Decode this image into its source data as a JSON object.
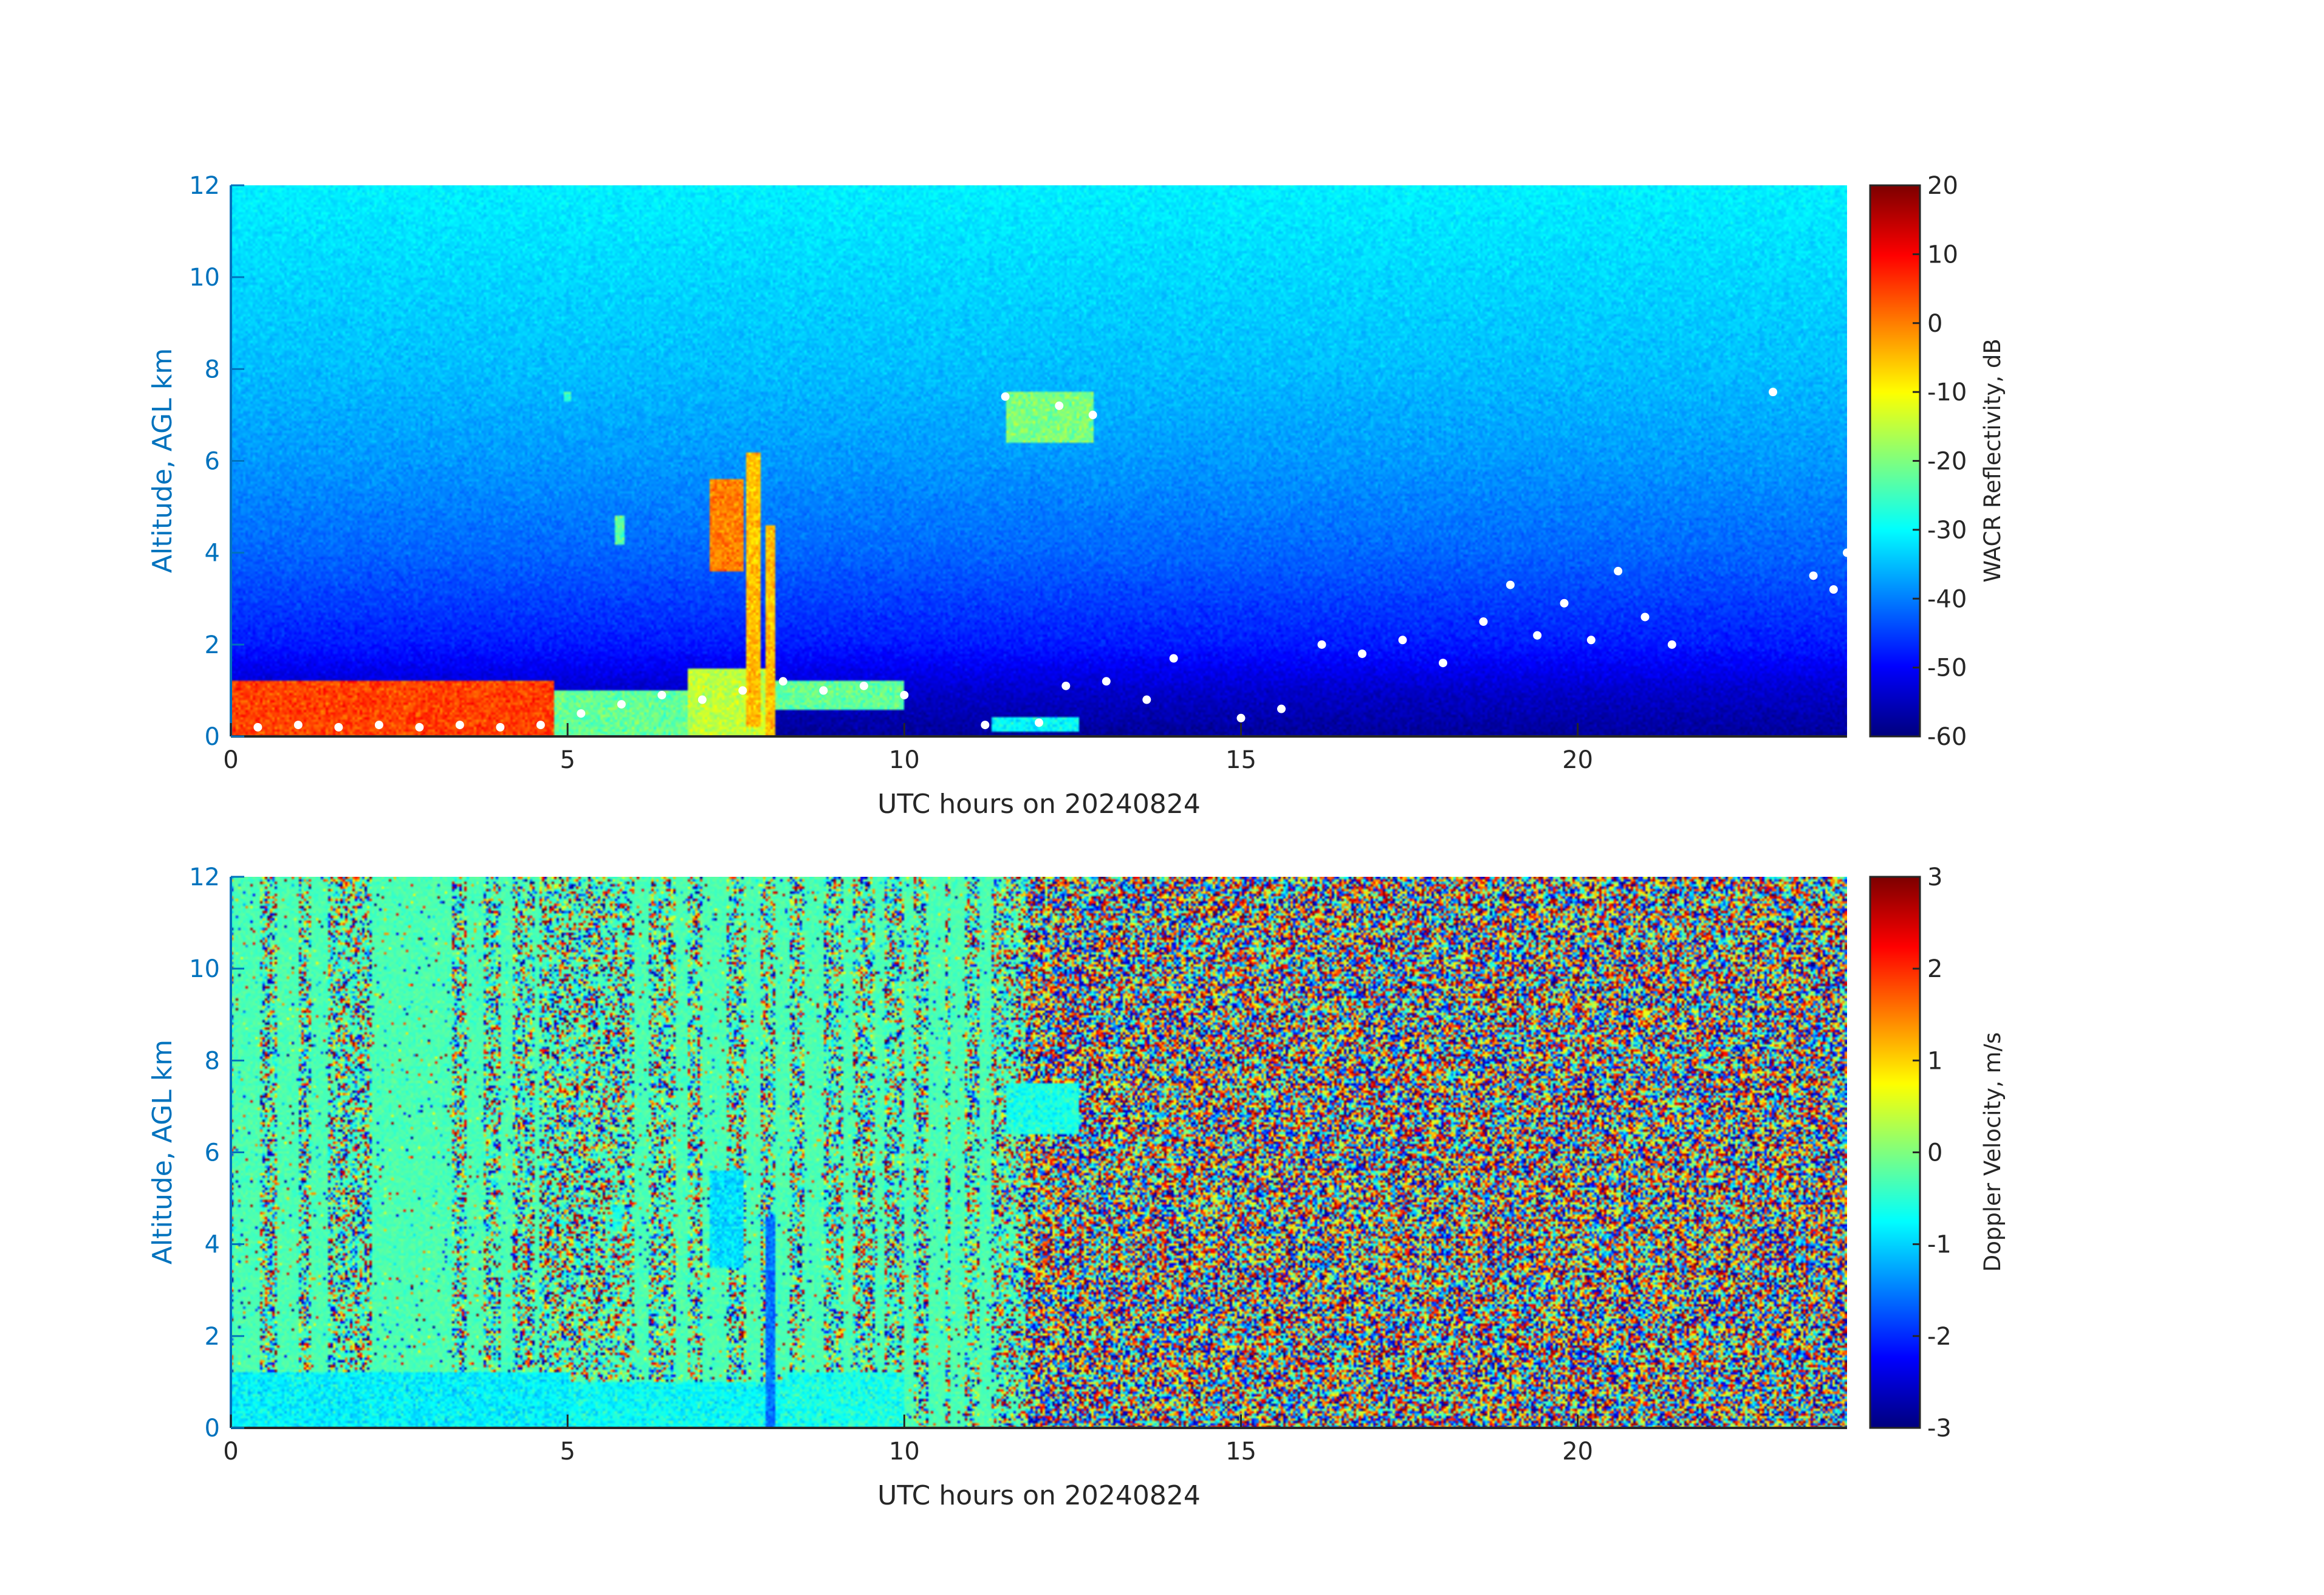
{
  "colors": {
    "axis_text_left": "#0072BD",
    "axis_text": "#262626",
    "axis_line": "#262626",
    "background": "#ffffff",
    "overlay_points": "#ffffff",
    "colormap": "jet"
  },
  "chart_data": [
    {
      "type": "heatmap",
      "name": "reflectivity",
      "title": "",
      "xlabel": "UTC hours on 20240824",
      "ylabel": "Altitude, AGL km",
      "xlim": [
        0,
        24
      ],
      "ylim": [
        0,
        12
      ],
      "xticks": [
        0,
        5,
        10,
        15,
        20
      ],
      "yticks": [
        0,
        2,
        4,
        6,
        8,
        10,
        12
      ],
      "grid": false,
      "colorbar": {
        "label": "WACR Reflectivity, dB",
        "clim": [
          -60,
          20
        ],
        "ticks": [
          20,
          10,
          0,
          -10,
          -20,
          -30,
          -40,
          -50,
          -60
        ]
      },
      "background_profile": [
        {
          "alt_km": 0.0,
          "value": -58
        },
        {
          "alt_km": 1.0,
          "value": -54
        },
        {
          "alt_km": 2.0,
          "value": -48
        },
        {
          "alt_km": 4.0,
          "value": -42
        },
        {
          "alt_km": 6.0,
          "value": -38
        },
        {
          "alt_km": 8.0,
          "value": -35
        },
        {
          "alt_km": 10.0,
          "value": -33
        },
        {
          "alt_km": 12.0,
          "value": -31
        }
      ],
      "features": [
        {
          "t0": 0.0,
          "t1": 4.8,
          "z0": 0.0,
          "z1": 1.2,
          "value": 5
        },
        {
          "t0": 4.8,
          "t1": 6.8,
          "z0": 0.0,
          "z1": 1.0,
          "value": -22
        },
        {
          "t0": 6.8,
          "t1": 8.1,
          "z0": 0.0,
          "z1": 1.5,
          "value": -15
        },
        {
          "t0": 7.1,
          "t1": 7.6,
          "z0": 3.6,
          "z1": 5.6,
          "value": 0
        },
        {
          "t0": 7.65,
          "t1": 7.85,
          "z0": 0.2,
          "z1": 6.2,
          "value": -5
        },
        {
          "t0": 7.95,
          "t1": 8.1,
          "z0": 0.0,
          "z1": 4.6,
          "value": -5
        },
        {
          "t0": 8.1,
          "t1": 10.0,
          "z0": 0.6,
          "z1": 1.2,
          "value": -22
        },
        {
          "t0": 11.5,
          "t1": 12.8,
          "z0": 6.4,
          "z1": 7.5,
          "value": -20
        },
        {
          "t0": 5.7,
          "t1": 5.85,
          "z0": 4.2,
          "z1": 4.8,
          "value": -22
        },
        {
          "t0": 4.95,
          "t1": 5.05,
          "z0": 7.3,
          "z1": 7.5,
          "value": -25
        },
        {
          "t0": 11.3,
          "t1": 12.6,
          "z0": 0.1,
          "z1": 0.4,
          "value": -30
        }
      ],
      "overlay_points": [
        [
          0.4,
          0.2
        ],
        [
          1.0,
          0.25
        ],
        [
          1.6,
          0.2
        ],
        [
          2.2,
          0.25
        ],
        [
          2.8,
          0.2
        ],
        [
          3.4,
          0.25
        ],
        [
          4.0,
          0.2
        ],
        [
          4.6,
          0.25
        ],
        [
          5.2,
          0.5
        ],
        [
          5.8,
          0.7
        ],
        [
          6.4,
          0.9
        ],
        [
          7.0,
          0.8
        ],
        [
          7.6,
          1.0
        ],
        [
          8.2,
          1.2
        ],
        [
          8.8,
          1.0
        ],
        [
          9.4,
          1.1
        ],
        [
          10.0,
          0.9
        ],
        [
          11.2,
          0.25
        ],
        [
          12.0,
          0.3
        ],
        [
          12.4,
          1.1
        ],
        [
          13.0,
          1.2
        ],
        [
          13.6,
          0.8
        ],
        [
          14.0,
          1.7
        ],
        [
          15.0,
          0.4
        ],
        [
          15.6,
          0.6
        ],
        [
          16.2,
          2.0
        ],
        [
          16.8,
          1.8
        ],
        [
          17.4,
          2.1
        ],
        [
          18.0,
          1.6
        ],
        [
          18.6,
          2.5
        ],
        [
          19.0,
          3.3
        ],
        [
          19.4,
          2.2
        ],
        [
          19.8,
          2.9
        ],
        [
          20.2,
          2.1
        ],
        [
          20.6,
          3.6
        ],
        [
          21.0,
          2.6
        ],
        [
          21.4,
          2.0
        ],
        [
          11.5,
          7.4
        ],
        [
          12.3,
          7.2
        ],
        [
          12.8,
          7.0
        ],
        [
          22.9,
          7.5
        ],
        [
          23.5,
          3.5
        ],
        [
          23.8,
          3.2
        ],
        [
          24.0,
          4.0
        ]
      ]
    },
    {
      "type": "heatmap",
      "name": "doppler-velocity",
      "title": "",
      "xlabel": "UTC hours on 20240824",
      "ylabel": "Altitude, AGL km",
      "xlim": [
        0,
        24
      ],
      "ylim": [
        0,
        12
      ],
      "xticks": [
        0,
        5,
        10,
        15,
        20
      ],
      "yticks": [
        0,
        2,
        4,
        6,
        8,
        10,
        12
      ],
      "grid": false,
      "colorbar": {
        "label": "Doppler Velocity, m/s",
        "clim": [
          -3,
          3
        ],
        "ticks": [
          3,
          2,
          1,
          0,
          -1,
          -2,
          -3
        ]
      },
      "noise_start_hour": 11.8,
      "calm_bands": [
        {
          "t0": 0.05,
          "t1": 0.45
        },
        {
          "t0": 0.7,
          "t1": 1.0
        },
        {
          "t0": 1.2,
          "t1": 1.45
        },
        {
          "t0": 2.1,
          "t1": 3.3
        },
        {
          "t0": 3.5,
          "t1": 3.75
        },
        {
          "t0": 4.0,
          "t1": 4.2
        },
        {
          "t0": 4.5,
          "t1": 4.6
        },
        {
          "t0": 6.0,
          "t1": 6.2
        },
        {
          "t0": 6.6,
          "t1": 6.8
        },
        {
          "t0": 7.0,
          "t1": 7.35
        },
        {
          "t0": 7.65,
          "t1": 7.85
        },
        {
          "t0": 8.1,
          "t1": 8.3
        },
        {
          "t0": 8.5,
          "t1": 8.8
        },
        {
          "t0": 9.1,
          "t1": 9.25
        },
        {
          "t0": 9.55,
          "t1": 9.7
        },
        {
          "t0": 10.0,
          "t1": 10.15
        },
        {
          "t0": 10.35,
          "t1": 10.6
        },
        {
          "t0": 10.7,
          "t1": 10.9
        },
        {
          "t0": 11.1,
          "t1": 11.3
        }
      ],
      "features": [
        {
          "t0": 0.0,
          "t1": 5.0,
          "z0": 0.0,
          "z1": 1.2,
          "value": -0.8
        },
        {
          "t0": 5.0,
          "t1": 8.2,
          "z0": 0.0,
          "z1": 1.0,
          "value": -0.7
        },
        {
          "t0": 8.2,
          "t1": 10.0,
          "z0": 0.0,
          "z1": 1.2,
          "value": -0.6
        },
        {
          "t0": 7.1,
          "t1": 7.6,
          "z0": 3.5,
          "z1": 5.6,
          "value": -0.9
        },
        {
          "t0": 7.95,
          "t1": 8.1,
          "z0": 0.0,
          "z1": 4.6,
          "value": -1.6
        },
        {
          "t0": 11.5,
          "t1": 12.6,
          "z0": 6.4,
          "z1": 7.5,
          "value": -0.6
        },
        {
          "t0": 5.65,
          "t1": 5.8,
          "z0": 4.3,
          "z1": 4.8,
          "value": -0.6
        }
      ]
    }
  ]
}
